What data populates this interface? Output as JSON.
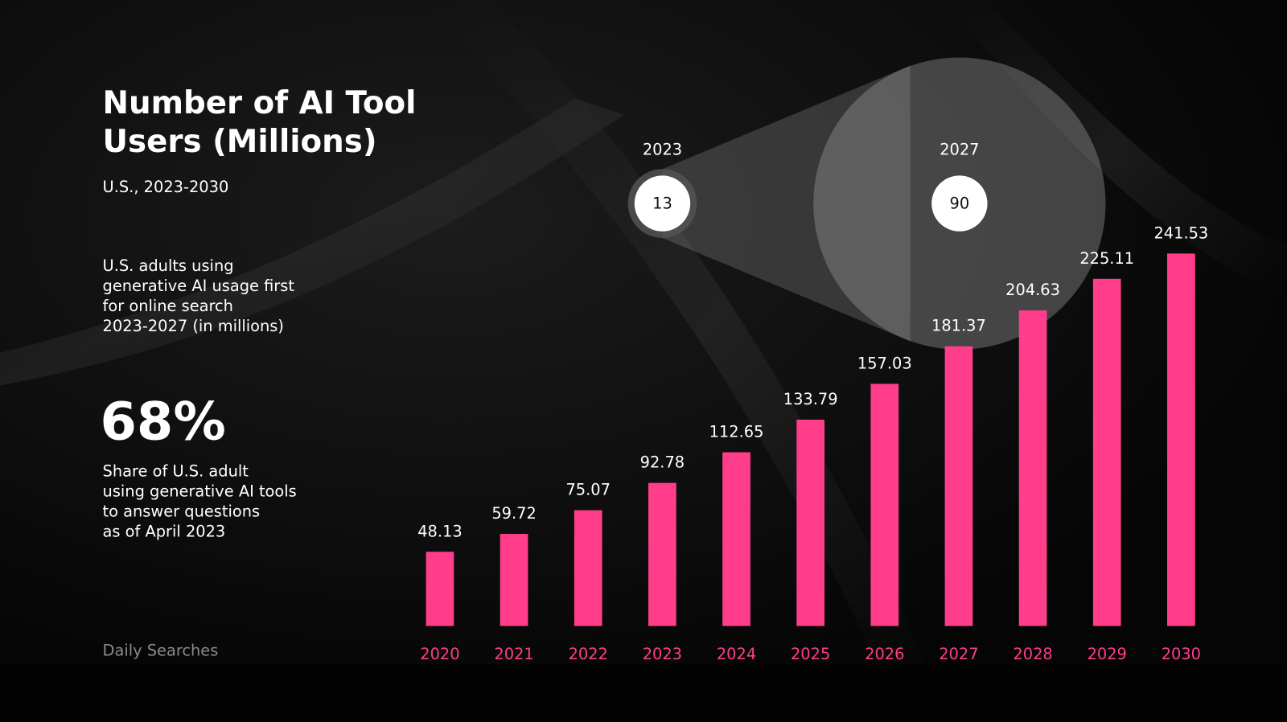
{
  "chart_data": {
    "type": "bar",
    "categories": [
      "2020",
      "2021",
      "2022",
      "2023",
      "2024",
      "2025",
      "2026",
      "2027",
      "2028",
      "2029",
      "2030"
    ],
    "values": [
      48.13,
      59.72,
      75.07,
      92.78,
      112.65,
      133.79,
      157.03,
      181.37,
      204.63,
      225.11,
      241.53
    ],
    "color": "#ff3d8b"
  },
  "header": {
    "title_lines": [
      "Number of AI Tool",
      "Users (Millions)"
    ],
    "subtitle": "U.S., 2023-2030"
  },
  "note": {
    "lines": [
      "U.S. adults using",
      "generative AI usage first",
      "for online search",
      "2023-2027 (in millions)"
    ]
  },
  "stat": {
    "value": "68%",
    "lines": [
      "Share of U.S. adult",
      "using generative AI tools",
      "to answer questions",
      "as of April 2023"
    ]
  },
  "inset": {
    "points": [
      {
        "label": "2023",
        "value": 13
      },
      {
        "label": "2027",
        "value": 90
      }
    ]
  },
  "footer": {
    "source": "Daily Searches"
  }
}
